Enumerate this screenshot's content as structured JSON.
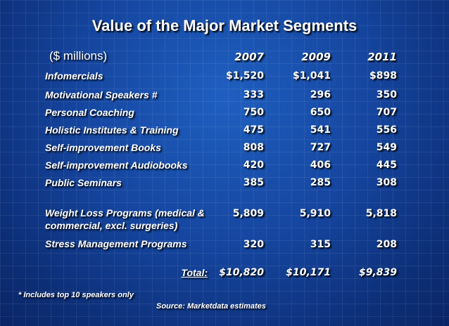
{
  "title": "Value of the Major Market Segments",
  "units": "($ millions)",
  "years": [
    "2007",
    "2009",
    "2011"
  ],
  "rows": [
    {
      "label": "Infomercials",
      "values": [
        "$1,520",
        "$1,041",
        "$898"
      ]
    },
    {
      "label": "Motivational Speakers #",
      "values": [
        "333",
        "296",
        "350"
      ]
    },
    {
      "label": "Personal Coaching",
      "values": [
        "750",
        "650",
        "707"
      ]
    },
    {
      "label": "Holistic Institutes & Training",
      "values": [
        "475",
        "541",
        "556"
      ]
    },
    {
      "label": "Self-improvement Books",
      "values": [
        "808",
        "727",
        "549"
      ]
    },
    {
      "label": "Self-improvement Audiobooks",
      "values": [
        "420",
        "406",
        "445"
      ]
    },
    {
      "label": "Public Seminars",
      "values": [
        "385",
        "285",
        "308"
      ]
    },
    {
      "label": "Weight Loss Programs (medical & commercial, excl. surgeries)",
      "values": [
        "5,809",
        "5,910",
        "5,818"
      ]
    },
    {
      "label": "Stress Management Programs",
      "values": [
        "320",
        "315",
        "208"
      ]
    }
  ],
  "total": {
    "label": "Total:",
    "values": [
      "$10,820",
      "$10,171",
      "$9,839"
    ]
  },
  "footnote": "* Includes top 10 speakers only",
  "source": "Source: Marketdata estimates"
}
